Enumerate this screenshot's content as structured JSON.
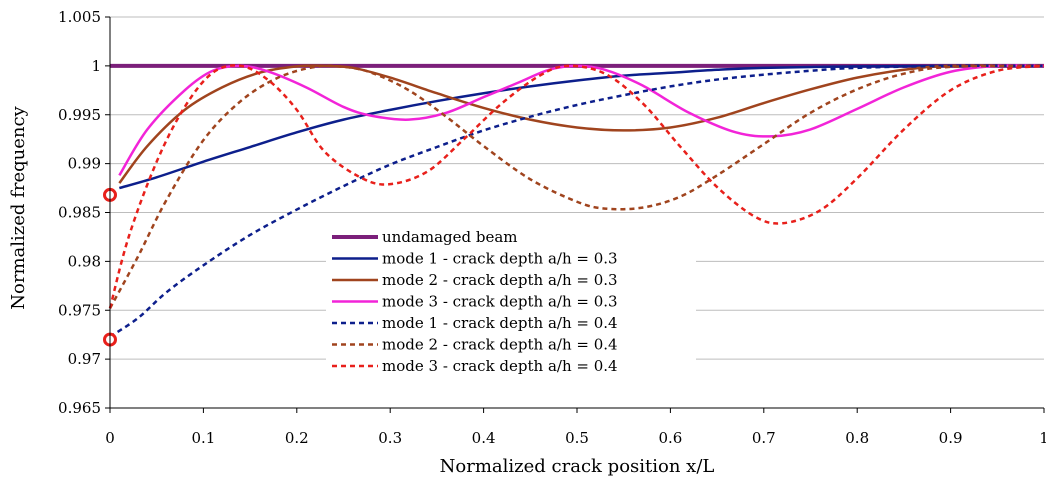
{
  "chart_data": {
    "type": "line",
    "xlabel": "Normalized crack position x/L",
    "ylabel": "Normalized frequency",
    "xlim": [
      0,
      1
    ],
    "ylim": [
      0.965,
      1.005
    ],
    "x_ticks": [
      0,
      0.1,
      0.2,
      0.3,
      0.4,
      0.5,
      0.6,
      0.7,
      0.8,
      0.9,
      1
    ],
    "x_tick_labels": [
      "0",
      "0.1",
      "0.2",
      "0.3",
      "0.4",
      "0.5",
      "0.6",
      "0.7",
      "0.8",
      "0.9",
      "1"
    ],
    "y_ticks": [
      0.965,
      0.97,
      0.975,
      0.98,
      0.985,
      0.99,
      0.995,
      1,
      1.005
    ],
    "y_tick_labels": [
      "0.965",
      "0.97",
      "0.975",
      "0.98",
      "0.985",
      "0.99",
      "0.995",
      "1",
      "1.005"
    ],
    "grid": "horizontal",
    "legend_position": "lower-middle",
    "series": [
      {
        "name": "undamaged beam",
        "color": "#7b1f7a",
        "dash": "solid",
        "width": 4,
        "points": [
          [
            0,
            1.0
          ],
          [
            1,
            1.0
          ]
        ]
      },
      {
        "name": "mode 1 - crack depth a/h = 0.3",
        "color": "#0d1f8c",
        "dash": "solid",
        "width": 2.5,
        "points": [
          [
            0.01,
            0.9875
          ],
          [
            0.05,
            0.9886
          ],
          [
            0.1,
            0.9902
          ],
          [
            0.15,
            0.9917
          ],
          [
            0.2,
            0.9932
          ],
          [
            0.25,
            0.9945
          ],
          [
            0.3,
            0.9955
          ],
          [
            0.35,
            0.9964
          ],
          [
            0.4,
            0.9972
          ],
          [
            0.45,
            0.9979
          ],
          [
            0.5,
            0.9985
          ],
          [
            0.55,
            0.999
          ],
          [
            0.6,
            0.9993
          ],
          [
            0.65,
            0.9996
          ],
          [
            0.7,
            0.9998
          ],
          [
            0.8,
            0.99995
          ],
          [
            0.9,
            1.0
          ],
          [
            1.0,
            1.0
          ]
        ]
      },
      {
        "name": "mode 2 - crack depth a/h = 0.3",
        "color": "#a0441e",
        "dash": "solid",
        "width": 2.5,
        "points": [
          [
            0.01,
            0.988
          ],
          [
            0.04,
            0.9918
          ],
          [
            0.08,
            0.9955
          ],
          [
            0.12,
            0.9978
          ],
          [
            0.16,
            0.9993
          ],
          [
            0.2,
            0.99995
          ],
          [
            0.23,
            1.0
          ],
          [
            0.26,
            0.9998
          ],
          [
            0.3,
            0.9988
          ],
          [
            0.35,
            0.9972
          ],
          [
            0.4,
            0.9957
          ],
          [
            0.45,
            0.9945
          ],
          [
            0.5,
            0.9937
          ],
          [
            0.55,
            0.9934
          ],
          [
            0.6,
            0.9937
          ],
          [
            0.65,
            0.9947
          ],
          [
            0.7,
            0.9962
          ],
          [
            0.75,
            0.9976
          ],
          [
            0.8,
            0.9988
          ],
          [
            0.85,
            0.9996
          ],
          [
            0.9,
            1.0
          ],
          [
            1.0,
            1.0
          ]
        ]
      },
      {
        "name": "mode 3 - crack depth a/h = 0.3",
        "color": "#f224d8",
        "dash": "solid",
        "width": 2.5,
        "points": [
          [
            0.01,
            0.9888
          ],
          [
            0.04,
            0.9935
          ],
          [
            0.08,
            0.9975
          ],
          [
            0.11,
            0.9995
          ],
          [
            0.14,
            1.0
          ],
          [
            0.17,
            0.9994
          ],
          [
            0.21,
            0.9978
          ],
          [
            0.25,
            0.9958
          ],
          [
            0.28,
            0.9949
          ],
          [
            0.32,
            0.9945
          ],
          [
            0.36,
            0.9952
          ],
          [
            0.4,
            0.9968
          ],
          [
            0.44,
            0.9984
          ],
          [
            0.47,
            0.9996
          ],
          [
            0.5,
            1.0
          ],
          [
            0.53,
            0.9996
          ],
          [
            0.57,
            0.998
          ],
          [
            0.62,
            0.9952
          ],
          [
            0.67,
            0.9932
          ],
          [
            0.71,
            0.9928
          ],
          [
            0.75,
            0.9935
          ],
          [
            0.8,
            0.9956
          ],
          [
            0.85,
            0.9978
          ],
          [
            0.9,
            0.9994
          ],
          [
            0.95,
            1.0
          ],
          [
            1.0,
            1.0
          ]
        ]
      },
      {
        "name": "mode 1 - crack depth a/h = 0.4",
        "color": "#0d1f8c",
        "dash": "dashed",
        "width": 2.5,
        "points": [
          [
            0.0,
            0.9723
          ],
          [
            0.03,
            0.9742
          ],
          [
            0.06,
            0.9768
          ],
          [
            0.1,
            0.9796
          ],
          [
            0.15,
            0.9827
          ],
          [
            0.2,
            0.9853
          ],
          [
            0.25,
            0.9877
          ],
          [
            0.3,
            0.9899
          ],
          [
            0.35,
            0.9917
          ],
          [
            0.4,
            0.9934
          ],
          [
            0.45,
            0.9948
          ],
          [
            0.5,
            0.996
          ],
          [
            0.55,
            0.997
          ],
          [
            0.6,
            0.9979
          ],
          [
            0.65,
            0.9986
          ],
          [
            0.7,
            0.9991
          ],
          [
            0.75,
            0.9995
          ],
          [
            0.8,
            0.9998
          ],
          [
            0.9,
            1.0
          ],
          [
            1.0,
            1.0
          ]
        ]
      },
      {
        "name": "mode 2 - crack depth a/h = 0.4",
        "color": "#a0441e",
        "dash": "dashed",
        "width": 2.5,
        "points": [
          [
            0.0,
            0.9752
          ],
          [
            0.03,
            0.9805
          ],
          [
            0.06,
            0.9862
          ],
          [
            0.1,
            0.9924
          ],
          [
            0.14,
            0.9964
          ],
          [
            0.18,
            0.9988
          ],
          [
            0.22,
            0.9999
          ],
          [
            0.25,
            0.9999
          ],
          [
            0.28,
            0.9993
          ],
          [
            0.32,
            0.9975
          ],
          [
            0.36,
            0.9948
          ],
          [
            0.4,
            0.9918
          ],
          [
            0.45,
            0.9884
          ],
          [
            0.5,
            0.9861
          ],
          [
            0.53,
            0.9854
          ],
          [
            0.57,
            0.9855
          ],
          [
            0.61,
            0.9866
          ],
          [
            0.65,
            0.9888
          ],
          [
            0.7,
            0.992
          ],
          [
            0.75,
            0.9952
          ],
          [
            0.8,
            0.9976
          ],
          [
            0.85,
            0.9992
          ],
          [
            0.9,
            0.9999
          ],
          [
            1.0,
            1.0
          ]
        ]
      },
      {
        "name": "mode 3 - crack depth a/h = 0.4",
        "color": "#e8201b",
        "dash": "dashed",
        "width": 2.5,
        "points": [
          [
            0.0,
            0.9752
          ],
          [
            0.02,
            0.9825
          ],
          [
            0.05,
            0.9902
          ],
          [
            0.08,
            0.9958
          ],
          [
            0.11,
            0.9993
          ],
          [
            0.14,
            1.0
          ],
          [
            0.17,
            0.9985
          ],
          [
            0.2,
            0.9955
          ],
          [
            0.23,
            0.9912
          ],
          [
            0.27,
            0.9885
          ],
          [
            0.3,
            0.9879
          ],
          [
            0.34,
            0.9892
          ],
          [
            0.38,
            0.9926
          ],
          [
            0.42,
            0.9962
          ],
          [
            0.46,
            0.999
          ],
          [
            0.49,
            1.0
          ],
          [
            0.53,
            0.9992
          ],
          [
            0.57,
            0.9962
          ],
          [
            0.61,
            0.9918
          ],
          [
            0.65,
            0.9876
          ],
          [
            0.69,
            0.9846
          ],
          [
            0.72,
            0.9839
          ],
          [
            0.76,
            0.9852
          ],
          [
            0.8,
            0.9885
          ],
          [
            0.85,
            0.9935
          ],
          [
            0.9,
            0.9975
          ],
          [
            0.95,
            0.9995
          ],
          [
            1.0,
            1.0
          ]
        ]
      }
    ],
    "markers": [
      {
        "x": 0,
        "y": 0.9868,
        "color": "#e8201b"
      },
      {
        "x": 0,
        "y": 0.972,
        "color": "#e8201b"
      }
    ]
  }
}
